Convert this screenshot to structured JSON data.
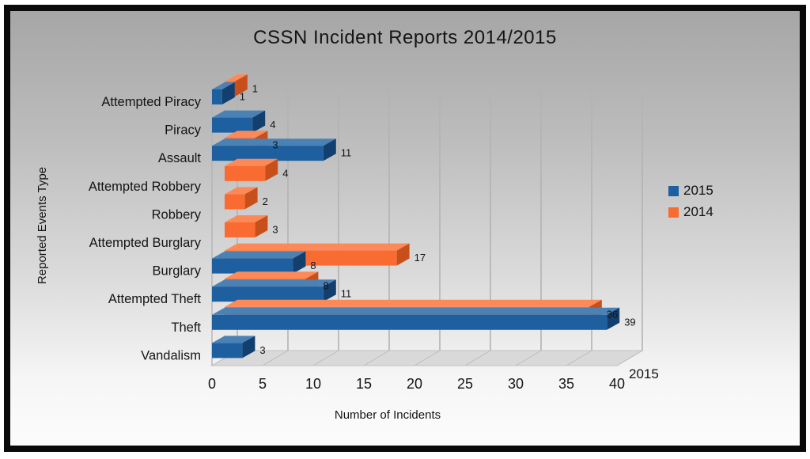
{
  "chart_data": {
    "type": "bar",
    "orientation": "horizontal",
    "style": "3d",
    "title": "CSSN Incident Reports 2014/2015",
    "xlabel": "Number of Incidents",
    "ylabel": "Reported Events Type",
    "depth_axis_label": "2015",
    "xlim": [
      0,
      40
    ],
    "xticks": [
      0,
      5,
      10,
      15,
      20,
      25,
      30,
      35,
      40
    ],
    "grid": true,
    "legend_position": "right",
    "categories": [
      "Attempted Piracy",
      "Piracy",
      "Assault",
      "Attempted Robbery",
      "Robbery",
      "Attempted Burglary",
      "Burglary",
      "Attempted Theft",
      "Theft",
      "Vandalism"
    ],
    "series": [
      {
        "name": "2015",
        "color": "#1E5F9F",
        "color_top": "#4A82B6",
        "color_side": "#123F6E",
        "values": [
          1,
          4,
          11,
          0,
          0,
          0,
          8,
          11,
          39,
          3
        ]
      },
      {
        "name": "2014",
        "color": "#F96B31",
        "color_top": "#FB8A58",
        "color_side": "#C94F1A",
        "values": [
          1,
          0,
          3,
          4,
          2,
          3,
          17,
          8,
          36,
          0
        ]
      }
    ],
    "colors": {
      "text": "#141414",
      "gridline": "#b3b3b3",
      "floor_fill": "#d9d9d9",
      "floor_edge": "#c2c2c2",
      "frame": "#0a0a0a"
    }
  }
}
